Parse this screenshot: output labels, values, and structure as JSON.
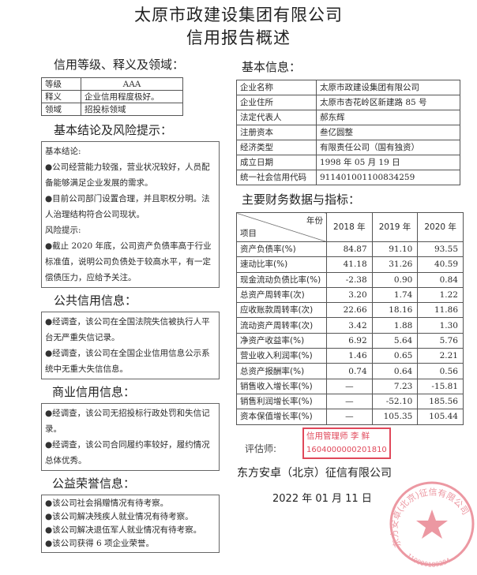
{
  "title_line1": "太原市政建设集团有限公司",
  "title_line2": "信用报告概述",
  "rating": {
    "heading": "信用等级、释义及领域：",
    "rows": [
      {
        "label": "等级",
        "value": "AAA"
      },
      {
        "label": "释义",
        "value": "企业信用程度极好。"
      },
      {
        "label": "领域",
        "value": "招投标领域"
      }
    ]
  },
  "conclusion": {
    "heading": "基本结论及风险提示：",
    "basic_label": "基本结论:",
    "basic_items": [
      "公司经营能力较强，营业状况较好，人员配备能够满足企业发展的需求。",
      "目前公司部门设置合理，并且职权分明。法人治理结构符合公司现状。"
    ],
    "risk_label": "风险提示:",
    "risk_items": [
      "截止 2020 年底，公司资产负债率高于行业标准值，说明公司负债处于较高水平，有一定偿债压力，应给予关注。"
    ]
  },
  "public_credit": {
    "heading": "公共信用信息：",
    "items": [
      "经调查，该公司在全国法院失信被执行人平台无严重失信记录。",
      "经调查，该公司在全国企业信用信息公示系统中无重大失信信息。"
    ]
  },
  "business_credit": {
    "heading": "商业信用信息：",
    "items": [
      "经调查，该公司无招投标行政处罚和失信记录。",
      "经调查，该公司合同履约率较好，履约情况总体优秀。"
    ]
  },
  "honor": {
    "heading": "公益荣誉信息：",
    "items": [
      "该公司社会捐赠情况有待考察。",
      "该公司解决残疾人就业情况有待考察。",
      "该公司解决退伍军人就业情况有待考察。",
      "该公司获得 6 项企业荣誉。"
    ]
  },
  "basic_info": {
    "heading": "基本信息：",
    "rows": [
      {
        "label": "企业名称",
        "value": "太原市政建设集团有限公司"
      },
      {
        "label": "企业住所",
        "value": "太原市杏花岭区新建路 85 号"
      },
      {
        "label": "法定代表人",
        "value": "郝东辉"
      },
      {
        "label": "注册资本",
        "value": "叁亿圆整"
      },
      {
        "label": "经济类型",
        "value": "有限责任公司（国有独资）"
      },
      {
        "label": "成立日期",
        "value": "1998 年 05 月 19 日"
      },
      {
        "label": "统一社会信用代码",
        "value": "911401001100834259"
      }
    ]
  },
  "finance": {
    "heading": "主要财务数据与指标：",
    "corner_top": "年份",
    "corner_bottom": "项目",
    "years": [
      "2018 年",
      "2019 年",
      "2020 年"
    ],
    "rows": [
      {
        "label": "资产负债率(%)",
        "values": [
          "84.87",
          "91.10",
          "93.55"
        ]
      },
      {
        "label": "速动比率(%)",
        "values": [
          "41.18",
          "31.26",
          "40.59"
        ]
      },
      {
        "label": "现金流动负债比率(%)",
        "values": [
          "-2.38",
          "0.90",
          "0.84"
        ]
      },
      {
        "label": "总资产周转率(次)",
        "values": [
          "3.20",
          "1.74",
          "1.22"
        ]
      },
      {
        "label": "应收账款周转率(次)",
        "values": [
          "22.66",
          "18.16",
          "11.86"
        ]
      },
      {
        "label": "流动资产周转率(次)",
        "values": [
          "3.42",
          "1.88",
          "1.30"
        ]
      },
      {
        "label": "净资产收益率(%)",
        "values": [
          "6.92",
          "5.64",
          "5.76"
        ]
      },
      {
        "label": "营业收入利润率(%)",
        "values": [
          "1.46",
          "0.65",
          "2.21"
        ]
      },
      {
        "label": "总资产报酬率(%)",
        "values": [
          "0.74",
          "0.64",
          "0.56"
        ]
      },
      {
        "label": "销售收入增长率(%)",
        "values": [
          "—",
          "7.23",
          "-15.81"
        ]
      },
      {
        "label": "销售利润增长率(%)",
        "values": [
          "—",
          "-52.10",
          "185.56"
        ]
      },
      {
        "label": "资本保值增长率(%)",
        "values": [
          "—",
          "105.35",
          "105.44"
        ]
      }
    ]
  },
  "signature": {
    "evaluator_label": "评估师:",
    "stamp_title": "信用管理师  李 鲜",
    "stamp_number": "1604000000201810",
    "company": "东方安卓（北京）征信有限公司",
    "date": "2022 年 01 月 11 日",
    "seal_text": "东方安卓(北京)征信有限公司",
    "seal_number": "110000189284",
    "stamp_color": "#e0485a"
  }
}
